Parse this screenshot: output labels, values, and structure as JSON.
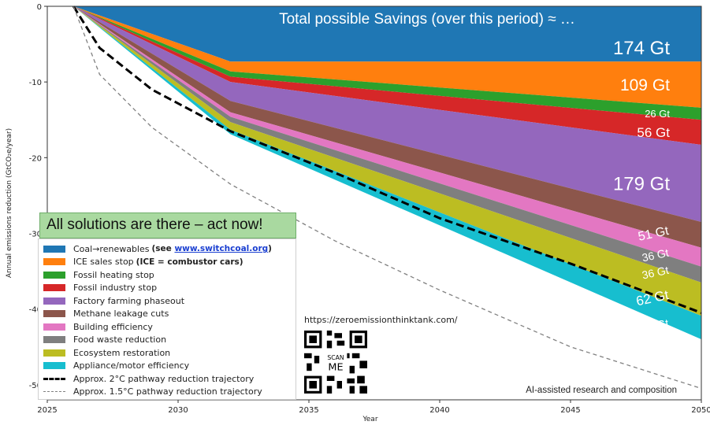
{
  "chart_data": {
    "type": "area",
    "title": "Total possible Savings (over this period) ≈ …",
    "xlabel": "Year",
    "ylabel": "Annual emissions reduction (GtCO₂e/year)",
    "xlim": [
      2025,
      2050
    ],
    "ylim": [
      -52,
      0
    ],
    "xticks": [
      2025,
      2030,
      2035,
      2040,
      2045,
      2050
    ],
    "yticks": [
      0,
      -10,
      -20,
      -30,
      -40,
      -50
    ],
    "x": [
      2026,
      2032,
      2050
    ],
    "series": [
      {
        "name": "Coal→renewables",
        "values": [
          0,
          -7.3,
          -7.3
        ],
        "color": "#1f77b4",
        "total_label": "174 Gt"
      },
      {
        "name": "ICE sales stop",
        "values": [
          0,
          -1.3,
          -6.1
        ],
        "color": "#ff7f0e",
        "total_label": "109 Gt"
      },
      {
        "name": "Fossil heating stop",
        "values": [
          0,
          -0.7,
          -1.6
        ],
        "color": "#2ca02c",
        "total_label": "26 Gt"
      },
      {
        "name": "Fossil industry stop",
        "values": [
          0,
          -0.7,
          -3.3
        ],
        "color": "#d62728",
        "total_label": "56 Gt"
      },
      {
        "name": "Factory farming phaseout",
        "values": [
          0,
          -2.5,
          -10.2
        ],
        "color": "#9467bd",
        "total_label": "179 Gt"
      },
      {
        "name": "Methane leakage cuts",
        "values": [
          0,
          -1.5,
          -3.4
        ],
        "color": "#8c564b",
        "total_label": "51 Gt"
      },
      {
        "name": "Building efficiency",
        "values": [
          0,
          -0.6,
          -2.5
        ],
        "color": "#e377c2",
        "total_label": "36 Gt"
      },
      {
        "name": "Food waste reduction",
        "values": [
          0,
          -0.7,
          -2.1
        ],
        "color": "#7f7f7f",
        "total_label": "36 Gt"
      },
      {
        "name": "Ecosystem restoration",
        "values": [
          0,
          -1.0,
          -4.4
        ],
        "color": "#bcbd22",
        "total_label": "62 Gt"
      },
      {
        "name": "Appliance/motor efficiency",
        "values": [
          0,
          -0.6,
          -3.1
        ],
        "color": "#17becf",
        "total_label": "44 Gt"
      }
    ],
    "lines": [
      {
        "name": "Approx. 2°C pathway reduction trajectory",
        "style": "thick-dashed",
        "color": "#000000",
        "x": [
          2026,
          2027,
          2029,
          2032,
          2036,
          2040,
          2045,
          2050
        ],
        "y": [
          0,
          -5.5,
          -11,
          -16.5,
          -22,
          -28,
          -34,
          -40.5
        ]
      },
      {
        "name": "Approx. 1.5°C pathway reduction trajectory",
        "style": "dashed",
        "color": "#808080",
        "x": [
          2026,
          2027,
          2029,
          2032,
          2036,
          2040,
          2045,
          2050
        ],
        "y": [
          0,
          -9,
          -16,
          -23.5,
          -31,
          -37.5,
          -45,
          -50.5
        ]
      }
    ],
    "legend_position": "lower-left",
    "grid": false
  },
  "banner": "All solutions are there – act now!",
  "legend": {
    "coal_note_prefix": "(see ",
    "coal_note_link": "www.switchcoal.org",
    "coal_note_suffix": ")",
    "ice_note": "(ICE = combustor cars)"
  },
  "website": "https://zeroemissionthinktank.com/",
  "qr_label_top": "SCAN",
  "qr_label_bottom": "ME",
  "credit": "AI-assisted research and composition"
}
